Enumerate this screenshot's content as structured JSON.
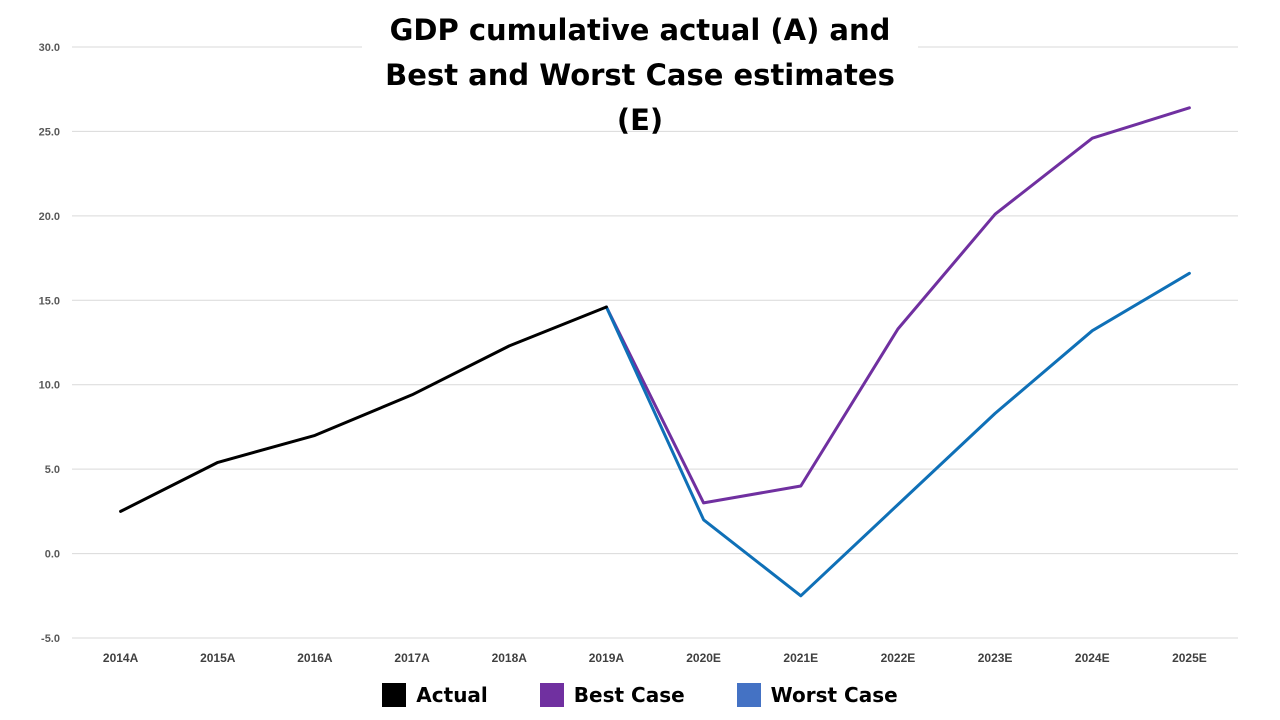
{
  "chart_data": {
    "type": "line",
    "title_lines": [
      "GDP cumulative actual (A) and",
      "Best and Worst Case estimates (E)"
    ],
    "xlabel": "",
    "ylabel": "",
    "categories": [
      "2014A",
      "2015A",
      "2016A",
      "2017A",
      "2018A",
      "2019A",
      "2020E",
      "2021E",
      "2022E",
      "2023E",
      "2024E",
      "2025E"
    ],
    "ylim": [
      -5,
      30
    ],
    "yticks": [
      -5,
      0,
      5,
      10,
      15,
      20,
      25,
      30
    ],
    "ytick_labels": [
      "-5.0",
      "0.0",
      "5.0",
      "10.0",
      "15.0",
      "20.0",
      "25.0",
      "30.0"
    ],
    "grid": true,
    "legend_placement": "bottom",
    "series": [
      {
        "name": "Actual",
        "color": "#000000",
        "values": [
          2.5,
          5.4,
          7.0,
          9.4,
          12.3,
          14.6,
          null,
          null,
          null,
          null,
          null,
          null
        ]
      },
      {
        "name": "Best Case",
        "color": "#7030a0",
        "values": [
          null,
          null,
          null,
          null,
          null,
          14.6,
          3.0,
          4.0,
          13.3,
          20.1,
          24.6,
          26.4
        ]
      },
      {
        "name": "Worst Case",
        "color": "#0f70b7",
        "values": [
          null,
          null,
          null,
          null,
          null,
          14.6,
          2.0,
          -2.5,
          2.9,
          8.3,
          13.2,
          16.6
        ]
      }
    ],
    "legend": [
      {
        "name": "Actual",
        "color": "#000000"
      },
      {
        "name": "Best Case",
        "color": "#7030a0"
      },
      {
        "name": "Worst Case",
        "color": "#4472c4"
      }
    ]
  }
}
